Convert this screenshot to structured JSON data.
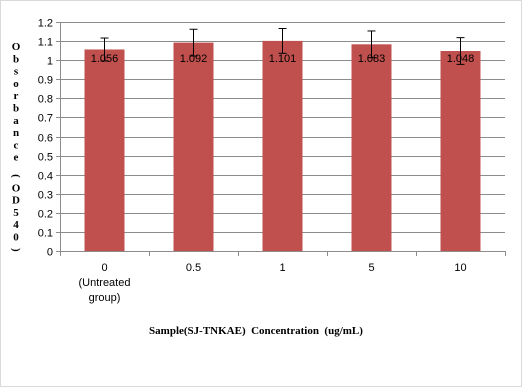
{
  "chart_data": {
    "type": "bar",
    "categories": [
      "0 (Untreated group)",
      "0.5",
      "1",
      "5",
      "10"
    ],
    "category_label_lines": [
      [
        "0",
        "(Untreated",
        "group)"
      ],
      [
        "0.5"
      ],
      [
        "1"
      ],
      [
        "5"
      ],
      [
        "10"
      ]
    ],
    "values": [
      1.056,
      1.092,
      1.101,
      1.083,
      1.048
    ],
    "data_labels": [
      "1.056",
      "1.092",
      "1.101",
      "1.083",
      "1.048"
    ],
    "error": [
      0.06,
      0.07,
      0.065,
      0.07,
      0.07
    ],
    "xlabel": "Sample(SJ-TNKAE)  Concentration  (ug/mL)",
    "ylabel": "Obsorbance (OD540)",
    "ylim": [
      0,
      1.2
    ],
    "yticks": [
      0,
      0.1,
      0.2,
      0.3,
      0.4,
      0.5,
      0.6,
      0.7,
      0.8,
      0.9,
      1,
      1.1,
      1.2
    ],
    "ytick_labels": [
      "0",
      "0.1",
      "0.2",
      "0.3",
      "0.4",
      "0.5",
      "0.6",
      "0.7",
      "0.8",
      "0.9",
      "1",
      "1.1",
      "1.2"
    ],
    "grid": true,
    "bar_color": "#c0504d",
    "legend": "none"
  }
}
